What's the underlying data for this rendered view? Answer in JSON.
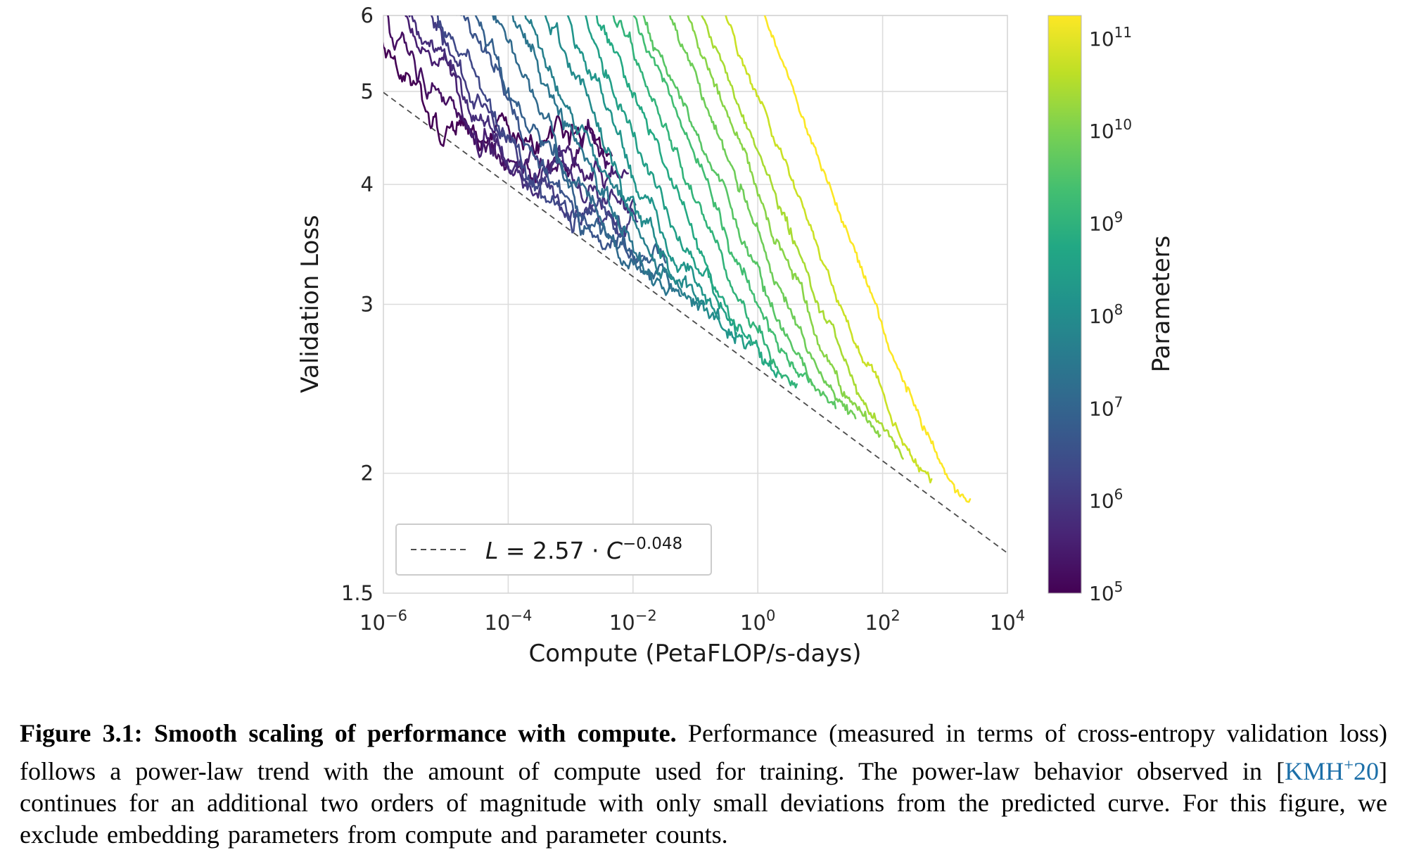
{
  "colors": {
    "citation_link": "#1c6fa8",
    "grid": "#dcdcdc",
    "frontier_dash": "#4d4d4d",
    "text": "#262626"
  },
  "caption": {
    "label": "Figure 3.1: Smooth scaling of performance with compute.",
    "before_cite": " Performance (measured in terms of cross-entropy validation loss) follows a power-law trend with the amount of compute used for training. The power-law behavior observed in [",
    "cite_main": "KMH",
    "cite_sup": "+",
    "cite_year": "20",
    "after_cite": "] continues for an additional two orders of magnitude with only small deviations from the predicted curve. For this figure, we exclude embedding parameters from compute and parameter counts."
  },
  "chart_data": {
    "type": "line",
    "title": "",
    "xlabel": "Compute (PetaFLOP/s-days)",
    "ylabel": "Validation Loss",
    "x_scale": "log",
    "y_scale": "log",
    "xlim_log10": [
      -6,
      4
    ],
    "ylim": [
      1.5,
      6
    ],
    "grid": true,
    "x_ticks": [
      {
        "base": "10",
        "exp": "−6",
        "log10": -6
      },
      {
        "base": "10",
        "exp": "−4",
        "log10": -4
      },
      {
        "base": "10",
        "exp": "−2",
        "log10": -2
      },
      {
        "base": "10",
        "exp": "0",
        "log10": 0
      },
      {
        "base": "10",
        "exp": "2",
        "log10": 2
      },
      {
        "base": "10",
        "exp": "4",
        "log10": 4
      }
    ],
    "y_ticks": [
      {
        "label": "6",
        "value": 6
      },
      {
        "label": "5",
        "value": 5
      },
      {
        "label": "4",
        "value": 4
      },
      {
        "label": "3",
        "value": 3
      },
      {
        "label": "2",
        "value": 2
      },
      {
        "label": "1.5",
        "value": 1.5
      }
    ],
    "frontier": {
      "label": "L = 2.57 · C^−0.048",
      "coefficient": 2.57,
      "exponent": -0.048
    },
    "legend": {
      "var_l": "L",
      "equals": " = 2.57 · ",
      "var_c": "C",
      "exponent": "−0.048"
    },
    "colorbar": {
      "label": "Parameters",
      "scale": "log",
      "domain_log10": [
        5,
        11.25
      ],
      "ticks": [
        {
          "base": "10",
          "exp": "11",
          "log10": 11
        },
        {
          "base": "10",
          "exp": "10",
          "log10": 10
        },
        {
          "base": "10",
          "exp": "9",
          "log10": 9
        },
        {
          "base": "10",
          "exp": "8",
          "log10": 8
        },
        {
          "base": "10",
          "exp": "7",
          "log10": 7
        },
        {
          "base": "10",
          "exp": "6",
          "log10": 6
        },
        {
          "base": "10",
          "exp": "5",
          "log10": 5
        }
      ]
    },
    "colormap_stops": [
      "#440154",
      "#482475",
      "#414487",
      "#355f8d",
      "#2a788e",
      "#21918c",
      "#22a884",
      "#44bf70",
      "#7ad151",
      "#bddf26",
      "#fde725"
    ],
    "curve_model": {
      "ct_slope": 1.33,
      "ct_offset": -5,
      "linf_log10_a": 0.9685,
      "linf_exp": -0.065,
      "m_base": 0.07,
      "m_slope": 0.05,
      "softplus_k": 3,
      "softplus_d0": 0.15,
      "overrun_base": 0.12,
      "overrun_amp": 2.3,
      "overrun_pow": 3.2,
      "smoothmax_r": 20,
      "noise_base": 0.011,
      "noise_slope": -0.008,
      "step_log10": 0.02,
      "t_span": 6.25
    },
    "curves_log10_parameters": [
      5.0,
      5.27,
      5.54,
      5.81,
      6.08,
      6.35,
      6.62,
      6.89,
      7.16,
      7.43,
      7.7,
      7.97,
      8.24,
      8.51,
      8.78,
      9.05,
      9.32,
      9.59,
      9.86,
      10.13,
      10.43,
      10.75,
      11.24
    ]
  }
}
